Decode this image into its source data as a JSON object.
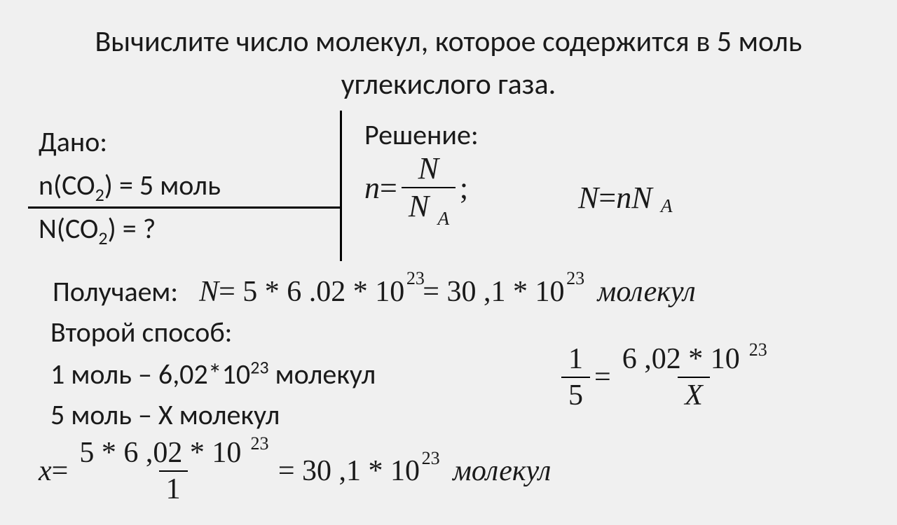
{
  "title": "Вычислите число молекул, которое содержится в 5 моль углекислого газа.",
  "given": {
    "label": "Дано:",
    "line1_pre": "n(CO",
    "line1_sub": "2",
    "line1_post": ") = 5 моль",
    "line2_pre": "N(CO",
    "line2_sub": "2",
    "line2_post": ") = ?"
  },
  "solution_label": "Решение:",
  "formula1": {
    "n": "n",
    "eq": " = ",
    "N": "N",
    "NA_N": "N",
    "NA_A": "A",
    "semi": ";"
  },
  "formula2": {
    "N": "N",
    "eq": "  =  ",
    "n": "nN",
    "A": "A"
  },
  "result": {
    "label": "Получаем:",
    "N": "N",
    "body": "  =  5 * 6 .02  * 10 ",
    "exp1": "23",
    "body2": "  =  30 ,1 * 10 ",
    "exp2": "23",
    "unit": "молекул"
  },
  "second_label": "Второй способ:",
  "prop": {
    "l1a": "1 моль – 6,02*10",
    "l1exp": "23",
    "l1b": " молекул",
    "l2": "5 моль – Х молекул"
  },
  "frac_right": {
    "n1": "1",
    "d1": "5",
    "eq": " = ",
    "n2a": "6 ,02  * 10 ",
    "n2exp": "23",
    "d2": "X"
  },
  "bottom": {
    "x": "x",
    "eq": " = ",
    "num": "5 * 6 ,02  * 10 ",
    "numexp": "23",
    "den": "1",
    "eq2": " = 30 ,1 * 10 ",
    "exp2": "23",
    "unit": "молекул"
  },
  "style": {
    "bg": "#f0f0f0",
    "text": "#1a1a1a",
    "title_fontsize": 42,
    "body_fontsize": 40,
    "math_fontsize": 44,
    "font_family_text": "Calibri, Arial, sans-serif",
    "font_family_math": "Times New Roman, serif",
    "rule_color": "#000000",
    "rule_width": 3
  }
}
